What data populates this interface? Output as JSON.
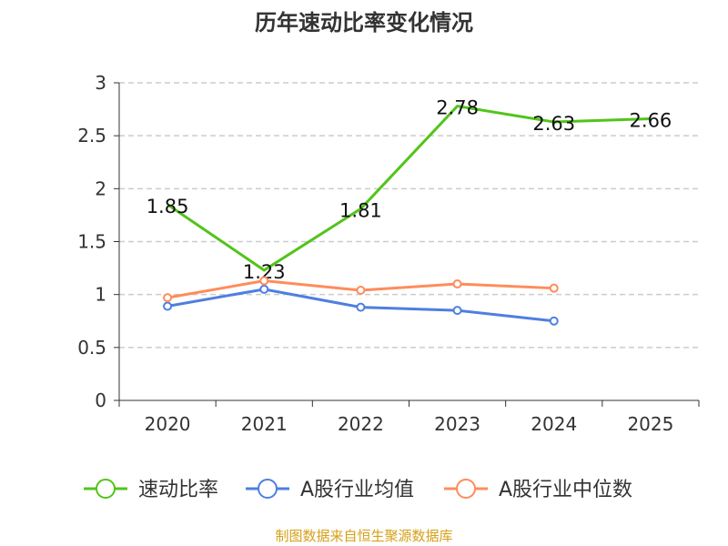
{
  "chart_data": {
    "type": "line",
    "title": "历年速动比率变化情况",
    "categories": [
      "2020",
      "2021",
      "2022",
      "2023",
      "2024",
      "2025"
    ],
    "ylim": [
      0,
      3
    ],
    "yticks": [
      0,
      0.5,
      1,
      1.5,
      2,
      2.5,
      3
    ],
    "ytick_labels": [
      "0",
      "0.5",
      "1",
      "1.5",
      "2",
      "2.5",
      "3"
    ],
    "grid": true,
    "legend_position": "bottom",
    "series": [
      {
        "name": "速动比率",
        "color": "#52c41a",
        "values": [
          1.85,
          1.23,
          1.81,
          2.78,
          2.63,
          2.66
        ],
        "labels": [
          "1.85",
          "1.23",
          "1.81",
          "2.78",
          "2.63",
          "2.66"
        ],
        "markers": false
      },
      {
        "name": "A股行业均值",
        "color": "#4e7fe0",
        "values": [
          0.89,
          1.05,
          0.88,
          0.85,
          0.75,
          null
        ],
        "markers": true
      },
      {
        "name": "A股行业中位数",
        "color": "#ff8c5a",
        "values": [
          0.97,
          1.13,
          1.04,
          1.1,
          1.06,
          null
        ],
        "markers": true
      }
    ],
    "source": "制图数据来自恒生聚源数据库"
  }
}
